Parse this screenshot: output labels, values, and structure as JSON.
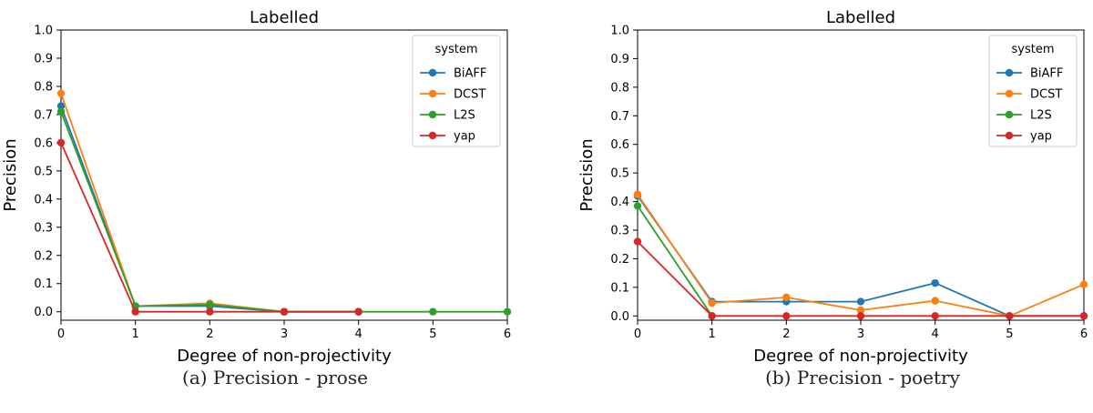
{
  "chart_data": [
    {
      "type": "line",
      "title": "Labelled",
      "xlabel": "Degree of non-projectivity",
      "ylabel": "Precision",
      "xlim": [
        0,
        6
      ],
      "ylim": [
        -0.03,
        1.0
      ],
      "xticks": [
        "0",
        "1",
        "2",
        "3",
        "4",
        "5",
        "6"
      ],
      "yticks": [
        "0.0",
        "0.1",
        "0.2",
        "0.3",
        "0.4",
        "0.5",
        "0.6",
        "0.7",
        "0.8",
        "0.9",
        "1.0"
      ],
      "legend": {
        "title": "system",
        "placement": "top-right"
      },
      "caption": "(a) Precision - prose",
      "series": [
        {
          "name": "BiAFF",
          "color": "#1f77b4",
          "x": [
            0,
            1,
            2,
            3,
            4
          ],
          "values": [
            0.73,
            0.02,
            0.02,
            0.0,
            0.0
          ]
        },
        {
          "name": "DCST",
          "color": "#ff7f0e",
          "x": [
            0,
            1,
            2,
            3,
            4
          ],
          "values": [
            0.775,
            0.02,
            0.03,
            0.0,
            0.0
          ]
        },
        {
          "name": "L2S",
          "color": "#2ca02c",
          "x": [
            0,
            1,
            2,
            3,
            4,
            5,
            6
          ],
          "values": [
            0.71,
            0.02,
            0.025,
            0.0,
            0.0,
            0.0,
            0.0
          ]
        },
        {
          "name": "yap",
          "color": "#d62728",
          "x": [
            0,
            1,
            2,
            3,
            4
          ],
          "values": [
            0.6,
            0.0,
            0.0,
            0.0,
            0.0
          ]
        }
      ]
    },
    {
      "type": "line",
      "title": "Labelled",
      "xlabel": "Degree of non-projectivity",
      "ylabel": "Precision",
      "xlim": [
        0,
        6
      ],
      "ylim": [
        -0.015,
        1.0
      ],
      "xticks": [
        "0",
        "1",
        "2",
        "3",
        "4",
        "5",
        "6"
      ],
      "yticks": [
        "0.0",
        "0.1",
        "0.2",
        "0.3",
        "0.4",
        "0.5",
        "0.6",
        "0.7",
        "0.8",
        "0.9",
        "1.0"
      ],
      "legend": {
        "title": "system",
        "placement": "top-right"
      },
      "caption": "(b) Precision - poetry",
      "series": [
        {
          "name": "BiAFF",
          "color": "#1f77b4",
          "x": [
            0,
            1,
            2,
            3,
            4,
            5,
            6
          ],
          "values": [
            0.42,
            0.05,
            0.05,
            0.05,
            0.115,
            0.0,
            0.0
          ]
        },
        {
          "name": "DCST",
          "color": "#ff7f0e",
          "x": [
            0,
            1,
            2,
            3,
            4,
            5,
            6
          ],
          "values": [
            0.425,
            0.045,
            0.065,
            0.02,
            0.053,
            0.0,
            0.11
          ]
        },
        {
          "name": "L2S",
          "color": "#2ca02c",
          "x": [
            0,
            1
          ],
          "values": [
            0.385,
            0.0
          ]
        },
        {
          "name": "yap",
          "color": "#d62728",
          "x": [
            0,
            1,
            2,
            3,
            4,
            5,
            6
          ],
          "values": [
            0.26,
            0.0,
            0.0,
            0.0,
            0.0,
            0.0,
            0.0
          ]
        }
      ]
    }
  ]
}
